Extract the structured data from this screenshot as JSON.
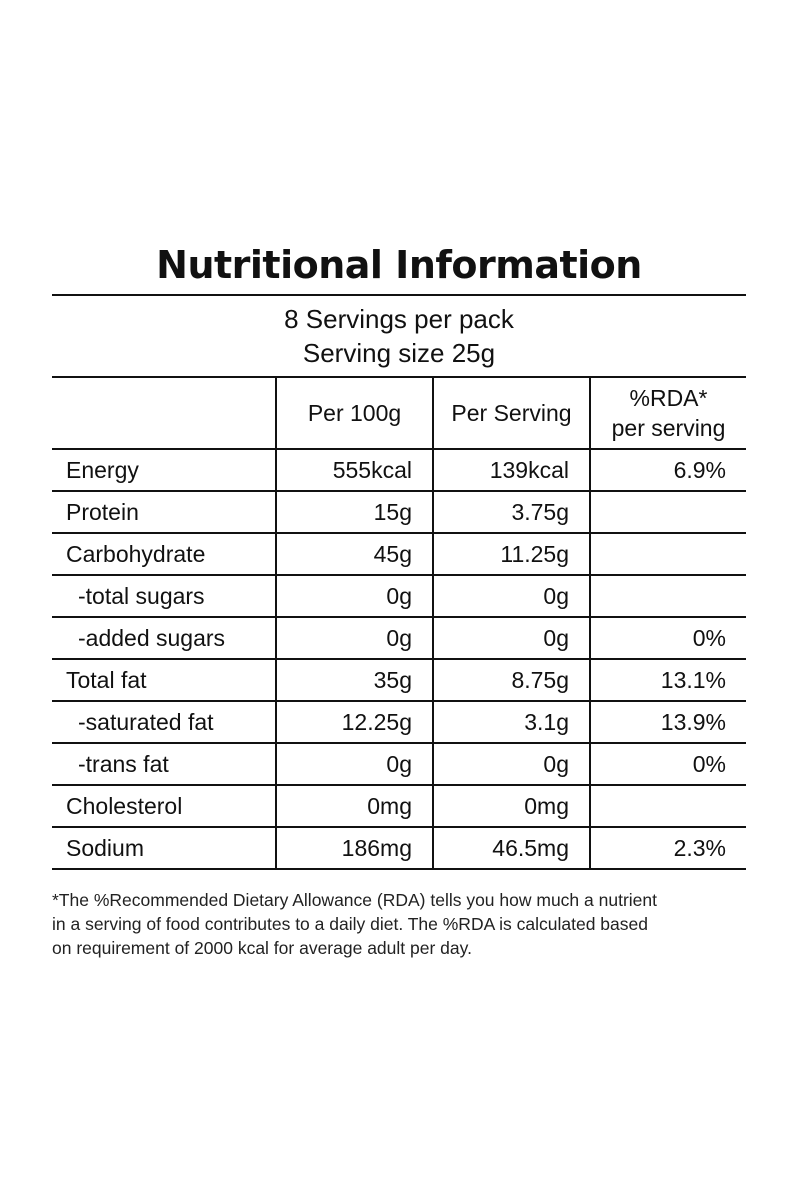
{
  "label": {
    "title": "Nutritional Information",
    "servings_per_pack": "8 Servings per pack",
    "serving_size": "Serving size 25g",
    "headers": {
      "nutrient": "",
      "per_100g": "Per 100g",
      "per_serving": "Per Serving",
      "rda_line1": "%RDA*",
      "rda_line2": "per serving"
    },
    "rows": [
      {
        "name": "Energy",
        "per_100g": "555kcal",
        "per_serving": "139kcal",
        "rda": "6.9%",
        "sub": false
      },
      {
        "name": "Protein",
        "per_100g": "15g",
        "per_serving": "3.75g",
        "rda": "",
        "sub": false
      },
      {
        "name": "Carbohydrate",
        "per_100g": "45g",
        "per_serving": "11.25g",
        "rda": "",
        "sub": false
      },
      {
        "name": "-total sugars",
        "per_100g": "0g",
        "per_serving": "0g",
        "rda": "",
        "sub": true
      },
      {
        "name": "-added sugars",
        "per_100g": "0g",
        "per_serving": "0g",
        "rda": "0%",
        "sub": true
      },
      {
        "name": "Total  fat",
        "per_100g": "35g",
        "per_serving": "8.75g",
        "rda": "13.1%",
        "sub": false
      },
      {
        "name": "-saturated fat",
        "per_100g": "12.25g",
        "per_serving": "3.1g",
        "rda": "13.9%",
        "sub": true
      },
      {
        "name": "-trans fat",
        "per_100g": "0g",
        "per_serving": "0g",
        "rda": "0%",
        "sub": true
      },
      {
        "name": "Cholesterol",
        "per_100g": "0mg",
        "per_serving": "0mg",
        "rda": "",
        "sub": false
      },
      {
        "name": "Sodium",
        "per_100g": "186mg",
        "per_serving": "46.5mg",
        "rda": "2.3%",
        "sub": false
      }
    ],
    "footnote": {
      "line1": "*The %Recommended Dietary Allowance (RDA) tells you how much a nutrient",
      "line2": "in a serving of food contributes to a daily diet. The %RDA is calculated based",
      "line3": "on requirement of 2000 kcal for average adult per day."
    }
  }
}
